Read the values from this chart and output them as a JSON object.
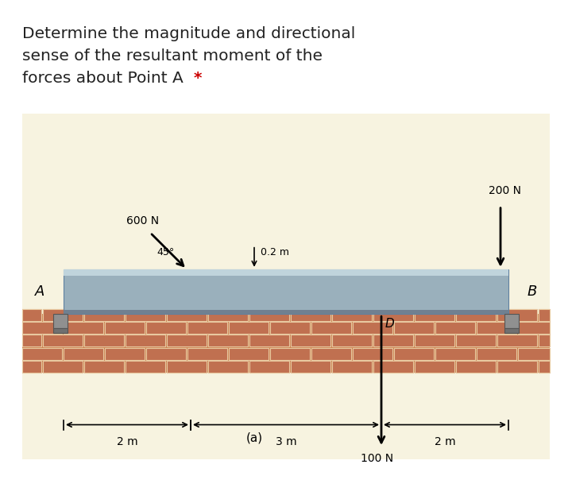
{
  "title_line1": "Determine the magnitude and directional",
  "title_line2": "sense of the resultant moment of the",
  "title_line3": "forces about Point A ",
  "title_star": "*",
  "title_fontsize": 14.5,
  "title_color": "#222222",
  "star_color": "#cc0000",
  "bg_color": "#ffffff",
  "diagram_bg": "#f7f3e0",
  "label_600N": "600 N",
  "label_200N": "200 N",
  "label_100N": "100 N",
  "label_02m": "0.2 m",
  "label_2m_left": "2 m",
  "label_3m": "3 m",
  "label_2m_right": "2 m",
  "label_45deg": "45°",
  "label_A": "A",
  "label_B": "B",
  "label_D": "D",
  "label_a": "(a)"
}
